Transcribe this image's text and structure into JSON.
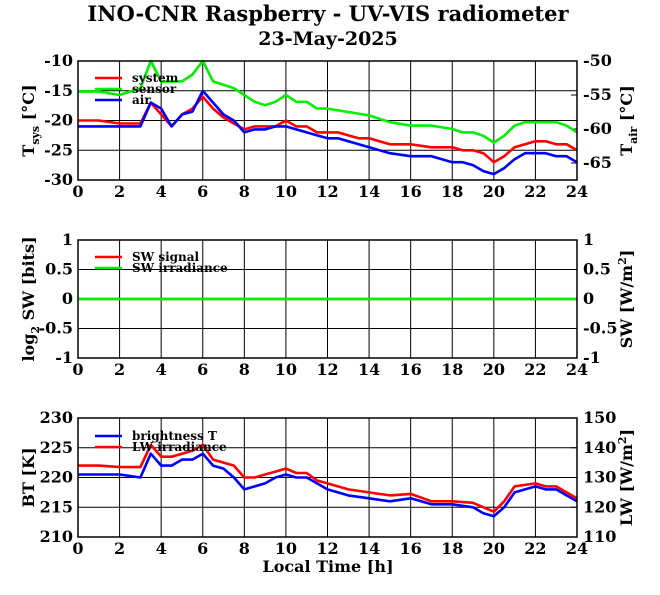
{
  "header": {
    "title": "INO-CNR Raspberry - UV-VIS radiometer",
    "date": "23-May-2025"
  },
  "chart_data": [
    {
      "type": "line",
      "panel": "temperature",
      "ylabel_left": {
        "main": "T",
        "sub": "sys",
        "unit": " [°C]"
      },
      "ylabel_right": {
        "main": "T",
        "sub": "air",
        "unit": " [°C]"
      },
      "xlim": [
        0,
        24
      ],
      "ylim": [
        -30,
        -10
      ],
      "ylim_right": [
        -67.5,
        -50
      ],
      "grid": true,
      "legend_position": "top-left",
      "x_ticks": [
        "0",
        "2",
        "4",
        "6",
        "8",
        "10",
        "12",
        "14",
        "16",
        "18",
        "20",
        "22",
        "24"
      ],
      "y_ticks_left": [
        "-10",
        "-15",
        "-20",
        "-25",
        "-30"
      ],
      "y_ticks_right": [
        "-50",
        "-55",
        "-60",
        "-65"
      ],
      "series": [
        {
          "name": "system",
          "color": "#ff0000",
          "axis": "left",
          "x": [
            0,
            1,
            2,
            3,
            3.5,
            4,
            4.5,
            5,
            5.5,
            6,
            6.5,
            7,
            7.5,
            8,
            8.5,
            9,
            9.5,
            10,
            10.5,
            11,
            11.5,
            12,
            12.5,
            13,
            13.5,
            14,
            15,
            16,
            17,
            18,
            18.5,
            19,
            19.5,
            20,
            20.5,
            21,
            21.5,
            22,
            22.5,
            23,
            23.5,
            24
          ],
          "values": [
            -20,
            -20,
            -20.5,
            -20.5,
            -17,
            -19,
            -21,
            -19,
            -18,
            -16,
            -18,
            -19.5,
            -20.5,
            -21.5,
            -21,
            -21,
            -21,
            -20,
            -21,
            -21,
            -22,
            -22,
            -22,
            -22.5,
            -23,
            -23,
            -24,
            -24,
            -24.5,
            -24.5,
            -25,
            -25,
            -25.5,
            -27,
            -26,
            -24.5,
            -24,
            -23.5,
            -23.5,
            -24,
            -24,
            -25
          ]
        },
        {
          "name": "sensor",
          "color": "#00ee00",
          "axis": "right",
          "x": [
            0,
            1,
            2,
            3,
            3.5,
            4,
            4.5,
            5,
            5.5,
            6,
            6.5,
            7,
            7.5,
            8,
            8.5,
            9,
            9.5,
            10,
            10.5,
            11,
            11.5,
            12,
            13,
            14,
            15,
            16,
            17,
            18,
            18.5,
            19,
            19.5,
            20,
            20.5,
            21,
            21.5,
            22,
            22.5,
            23,
            23.5,
            24
          ],
          "values": [
            -54.5,
            -54.5,
            -55,
            -54,
            -50,
            -53,
            -53,
            -53,
            -52,
            -50,
            -53,
            -53.5,
            -54,
            -55,
            -56,
            -56.5,
            -56,
            -55,
            -56,
            -56,
            -57,
            -57,
            -57.5,
            -58,
            -59,
            -59.5,
            -59.5,
            -60,
            -60.5,
            -60.5,
            -61,
            -62,
            -61,
            -59.5,
            -59,
            -59,
            -59,
            -59,
            -59.5,
            -60.5
          ]
        },
        {
          "name": "air",
          "color": "#0000ff",
          "axis": "left",
          "x": [
            0,
            1,
            2,
            3,
            3.5,
            4,
            4.5,
            5,
            5.5,
            6,
            6.5,
            7,
            7.5,
            8,
            8.5,
            9,
            9.5,
            10,
            10.5,
            11,
            11.5,
            12,
            12.5,
            13,
            13.5,
            14,
            15,
            16,
            17,
            18,
            18.5,
            19,
            19.5,
            20,
            20.5,
            21,
            21.5,
            22,
            22.5,
            23,
            23.5,
            24
          ],
          "values": [
            -21,
            -21,
            -21,
            -21,
            -17,
            -18,
            -21,
            -19,
            -18.5,
            -15,
            -17,
            -19,
            -20,
            -22,
            -21.5,
            -21.5,
            -21,
            -21,
            -21.5,
            -22,
            -22.5,
            -23,
            -23,
            -23.5,
            -24,
            -24.5,
            -25.5,
            -26,
            -26,
            -27,
            -27,
            -27.5,
            -28.5,
            -29,
            -28,
            -26.5,
            -25.5,
            -25.5,
            -25.5,
            -26,
            -26,
            -27
          ]
        }
      ]
    },
    {
      "type": "line",
      "panel": "shortwave",
      "ylabel_left": {
        "main": "log",
        "sub": "2",
        "unit": " SW [bits]"
      },
      "ylabel_right": {
        "main": "SW [W/m",
        "sup": "2",
        "unit": "]"
      },
      "xlim": [
        0,
        24
      ],
      "ylim": [
        -1,
        1
      ],
      "ylim_right": [
        -1,
        1
      ],
      "grid": true,
      "legend_position": "top-left",
      "x_ticks": [
        "0",
        "2",
        "4",
        "6",
        "8",
        "10",
        "12",
        "14",
        "16",
        "18",
        "20",
        "22",
        "24"
      ],
      "y_ticks_left": [
        "1",
        "0.5",
        "0",
        "-0.5",
        "-1"
      ],
      "y_ticks_right": [
        "1",
        "0.5",
        "0",
        "-0.5",
        "-1"
      ],
      "series": [
        {
          "name": "SW signal",
          "color": "#ff0000",
          "axis": "left",
          "x": [
            0,
            24
          ],
          "values": [
            0,
            0
          ]
        },
        {
          "name": "SW irradiance",
          "color": "#00ee00",
          "axis": "right",
          "x": [
            0,
            24
          ],
          "values": [
            0,
            0
          ]
        }
      ]
    },
    {
      "type": "line",
      "panel": "longwave",
      "ylabel_left": {
        "main": "BT [K]"
      },
      "ylabel_right": {
        "main": "LW [W/m",
        "sup": "2",
        "unit": "]"
      },
      "xlabel": "Local Time [h]",
      "xlim": [
        0,
        24
      ],
      "ylim": [
        210,
        230
      ],
      "ylim_right": [
        110,
        150
      ],
      "grid": true,
      "legend_position": "top-left",
      "x_ticks": [
        "0",
        "2",
        "4",
        "6",
        "8",
        "10",
        "12",
        "14",
        "16",
        "18",
        "20",
        "22",
        "24"
      ],
      "y_ticks_left": [
        "230",
        "225",
        "220",
        "215",
        "210"
      ],
      "y_ticks_right": [
        "150",
        "140",
        "130",
        "120",
        "110"
      ],
      "series": [
        {
          "name": "brightness T",
          "color": "#0000ff",
          "axis": "left",
          "x": [
            0,
            1,
            2,
            3,
            3.5,
            4,
            4.5,
            5,
            5.5,
            6,
            6.5,
            7,
            7.5,
            8,
            8.5,
            9,
            9.5,
            10,
            10.5,
            11,
            11.5,
            12,
            12.5,
            13,
            14,
            15,
            16,
            17,
            18,
            19,
            19.5,
            20,
            20.5,
            21,
            21.5,
            22,
            22.5,
            23,
            23.5,
            24
          ],
          "values": [
            220.5,
            220.5,
            220.5,
            220,
            224,
            222,
            222,
            223,
            223,
            224,
            222,
            221.5,
            220,
            218,
            218.5,
            219,
            220,
            220.5,
            220,
            220,
            219,
            218,
            217.5,
            217,
            216.5,
            216,
            216.5,
            215.5,
            215.5,
            215,
            214,
            213.5,
            215,
            217.5,
            218,
            218.5,
            218,
            218,
            217,
            216
          ]
        },
        {
          "name": "LW irradiance",
          "color": "#ff0000",
          "axis": "right",
          "x": [
            0,
            1,
            2,
            3,
            3.5,
            4,
            4.5,
            5,
            5.5,
            6,
            6.5,
            7,
            7.5,
            8,
            8.5,
            9,
            9.5,
            10,
            10.5,
            11,
            11.5,
            12,
            12.5,
            13,
            14,
            15,
            16,
            17,
            18,
            19,
            19.5,
            20,
            20.5,
            21,
            21.5,
            22,
            22.5,
            23,
            23.5,
            24
          ],
          "values": [
            134,
            134,
            133.5,
            133.5,
            141,
            137,
            137,
            138,
            139,
            141,
            136,
            135,
            134,
            130,
            130,
            131,
            132,
            133,
            131.5,
            131.5,
            129,
            128,
            127,
            126,
            125,
            124,
            124.5,
            122,
            122,
            121.5,
            120,
            118.5,
            122,
            127,
            127.5,
            128,
            127,
            127,
            125,
            123
          ]
        }
      ]
    }
  ]
}
